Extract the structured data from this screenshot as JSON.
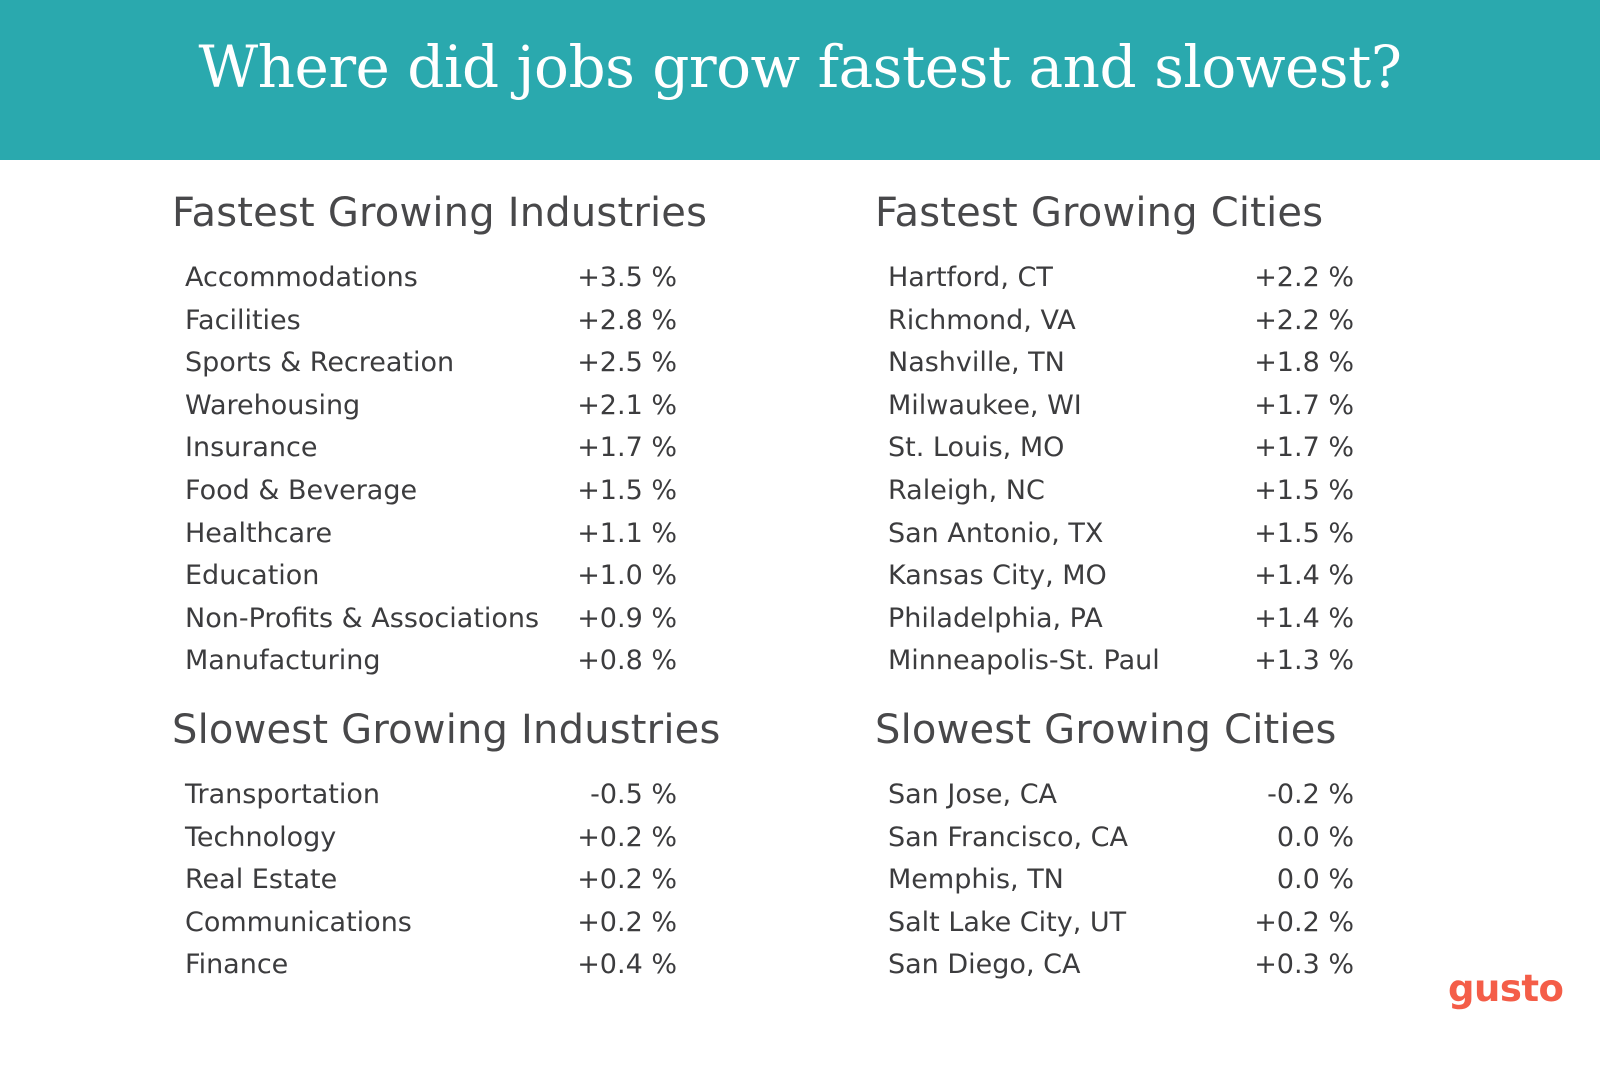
{
  "title": "Where did jobs grow fastest and slowest?",
  "logo": "gusto",
  "colors": {
    "banner": "#2aa9ae",
    "logo": "#f45d48",
    "text": "#3c3c3e"
  },
  "chart_data": [
    {
      "type": "table",
      "title": "Fastest Growing Industries",
      "rows": [
        {
          "label": "Accommodations",
          "value": "+3.5 %"
        },
        {
          "label": "Facilities",
          "value": "+2.8 %"
        },
        {
          "label": "Sports & Recreation",
          "value": "+2.5 %"
        },
        {
          "label": "Warehousing",
          "value": "+2.1 %"
        },
        {
          "label": "Insurance",
          "value": "+1.7 %"
        },
        {
          "label": "Food & Beverage",
          "value": "+1.5 %"
        },
        {
          "label": "Healthcare",
          "value": "+1.1 %"
        },
        {
          "label": "Education",
          "value": "+1.0 %"
        },
        {
          "label": "Non-Profits & Associations",
          "value": "+0.9 %"
        },
        {
          "label": "Manufacturing",
          "value": "+0.8 %"
        }
      ]
    },
    {
      "type": "table",
      "title": "Fastest Growing Cities",
      "rows": [
        {
          "label": "Hartford, CT",
          "value": "+2.2 %"
        },
        {
          "label": "Richmond, VA",
          "value": "+2.2 %"
        },
        {
          "label": "Nashville, TN",
          "value": "+1.8 %"
        },
        {
          "label": "Milwaukee, WI",
          "value": "+1.7 %"
        },
        {
          "label": "St. Louis, MO",
          "value": "+1.7 %"
        },
        {
          "label": "Raleigh, NC",
          "value": "+1.5 %"
        },
        {
          "label": "San Antonio, TX",
          "value": "+1.5 %"
        },
        {
          "label": "Kansas City, MO",
          "value": "+1.4 %"
        },
        {
          "label": "Philadelphia, PA",
          "value": "+1.4 %"
        },
        {
          "label": "Minneapolis-St. Paul",
          "value": "+1.3 %"
        }
      ]
    },
    {
      "type": "table",
      "title": "Slowest Growing Industries",
      "rows": [
        {
          "label": "Transportation",
          "value": "-0.5 %"
        },
        {
          "label": "Technology",
          "value": "+0.2 %"
        },
        {
          "label": "Real Estate",
          "value": "+0.2 %"
        },
        {
          "label": "Communications",
          "value": "+0.2 %"
        },
        {
          "label": "Finance",
          "value": "+0.4 %"
        }
      ]
    },
    {
      "type": "table",
      "title": "Slowest Growing Cities",
      "rows": [
        {
          "label": "San Jose, CA",
          "value": "-0.2 %"
        },
        {
          "label": "San Francisco, CA",
          "value": "0.0 %"
        },
        {
          "label": "Memphis, TN",
          "value": "0.0 %"
        },
        {
          "label": "Salt Lake City, UT",
          "value": "+0.2 %"
        },
        {
          "label": "San Diego, CA",
          "value": "+0.3 %"
        }
      ]
    }
  ]
}
